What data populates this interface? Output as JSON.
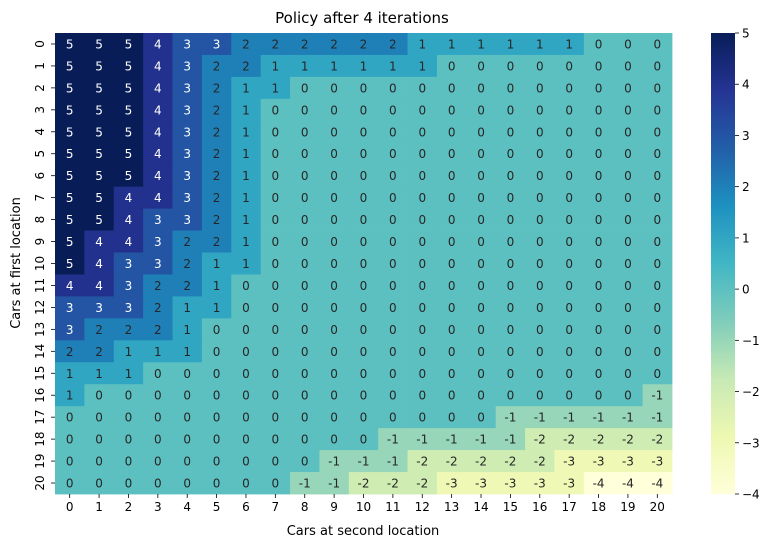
{
  "chart_data": {
    "type": "heatmap",
    "title": "Policy after 4 iterations",
    "xlabel": "Cars at second location",
    "ylabel": "Cars at first location",
    "x": [
      0,
      1,
      2,
      3,
      4,
      5,
      6,
      7,
      8,
      9,
      10,
      11,
      12,
      13,
      14,
      15,
      16,
      17,
      18,
      19,
      20
    ],
    "y": [
      0,
      1,
      2,
      3,
      4,
      5,
      6,
      7,
      8,
      9,
      10,
      11,
      12,
      13,
      14,
      15,
      16,
      17,
      18,
      19,
      20
    ],
    "colormap": "YlGnBu",
    "vmin": -4,
    "vmax": 5,
    "colorbar_ticks": [
      5,
      4,
      3,
      2,
      1,
      0,
      -1,
      -2,
      -3,
      -4
    ],
    "values": [
      [
        5,
        5,
        5,
        4,
        3,
        3,
        2,
        2,
        2,
        2,
        2,
        2,
        1,
        1,
        1,
        1,
        1,
        1,
        0,
        0,
        0
      ],
      [
        5,
        5,
        5,
        4,
        3,
        2,
        2,
        1,
        1,
        1,
        1,
        1,
        1,
        0,
        0,
        0,
        0,
        0,
        0,
        0,
        0
      ],
      [
        5,
        5,
        5,
        4,
        3,
        2,
        1,
        1,
        0,
        0,
        0,
        0,
        0,
        0,
        0,
        0,
        0,
        0,
        0,
        0,
        0
      ],
      [
        5,
        5,
        5,
        4,
        3,
        2,
        1,
        0,
        0,
        0,
        0,
        0,
        0,
        0,
        0,
        0,
        0,
        0,
        0,
        0,
        0
      ],
      [
        5,
        5,
        5,
        4,
        3,
        2,
        1,
        0,
        0,
        0,
        0,
        0,
        0,
        0,
        0,
        0,
        0,
        0,
        0,
        0,
        0
      ],
      [
        5,
        5,
        5,
        4,
        3,
        2,
        1,
        0,
        0,
        0,
        0,
        0,
        0,
        0,
        0,
        0,
        0,
        0,
        0,
        0,
        0
      ],
      [
        5,
        5,
        5,
        4,
        3,
        2,
        1,
        0,
        0,
        0,
        0,
        0,
        0,
        0,
        0,
        0,
        0,
        0,
        0,
        0,
        0
      ],
      [
        5,
        5,
        4,
        4,
        3,
        2,
        1,
        0,
        0,
        0,
        0,
        0,
        0,
        0,
        0,
        0,
        0,
        0,
        0,
        0,
        0
      ],
      [
        5,
        5,
        4,
        3,
        3,
        2,
        1,
        0,
        0,
        0,
        0,
        0,
        0,
        0,
        0,
        0,
        0,
        0,
        0,
        0,
        0
      ],
      [
        5,
        4,
        4,
        3,
        2,
        2,
        1,
        0,
        0,
        0,
        0,
        0,
        0,
        0,
        0,
        0,
        0,
        0,
        0,
        0,
        0
      ],
      [
        5,
        4,
        3,
        3,
        2,
        1,
        1,
        0,
        0,
        0,
        0,
        0,
        0,
        0,
        0,
        0,
        0,
        0,
        0,
        0,
        0
      ],
      [
        4,
        4,
        3,
        2,
        2,
        1,
        0,
        0,
        0,
        0,
        0,
        0,
        0,
        0,
        0,
        0,
        0,
        0,
        0,
        0,
        0
      ],
      [
        3,
        3,
        3,
        2,
        1,
        1,
        0,
        0,
        0,
        0,
        0,
        0,
        0,
        0,
        0,
        0,
        0,
        0,
        0,
        0,
        0
      ],
      [
        3,
        2,
        2,
        2,
        1,
        0,
        0,
        0,
        0,
        0,
        0,
        0,
        0,
        0,
        0,
        0,
        0,
        0,
        0,
        0,
        0
      ],
      [
        2,
        2,
        1,
        1,
        1,
        0,
        0,
        0,
        0,
        0,
        0,
        0,
        0,
        0,
        0,
        0,
        0,
        0,
        0,
        0,
        0
      ],
      [
        1,
        1,
        1,
        0,
        0,
        0,
        0,
        0,
        0,
        0,
        0,
        0,
        0,
        0,
        0,
        0,
        0,
        0,
        0,
        0,
        0
      ],
      [
        1,
        0,
        0,
        0,
        0,
        0,
        0,
        0,
        0,
        0,
        0,
        0,
        0,
        0,
        0,
        0,
        0,
        0,
        0,
        0,
        -1
      ],
      [
        0,
        0,
        0,
        0,
        0,
        0,
        0,
        0,
        0,
        0,
        0,
        0,
        0,
        0,
        0,
        -1,
        -1,
        -1,
        -1,
        -1,
        -1
      ],
      [
        0,
        0,
        0,
        0,
        0,
        0,
        0,
        0,
        0,
        0,
        0,
        -1,
        -1,
        -1,
        -1,
        -1,
        -2,
        -2,
        -2,
        -2,
        -2
      ],
      [
        0,
        0,
        0,
        0,
        0,
        0,
        0,
        0,
        0,
        -1,
        -1,
        -1,
        -2,
        -2,
        -2,
        -2,
        -2,
        -3,
        -3,
        -3,
        -3
      ],
      [
        0,
        0,
        0,
        0,
        0,
        0,
        0,
        0,
        -1,
        -1,
        -2,
        -2,
        -2,
        -3,
        -3,
        -3,
        -3,
        -3,
        -4,
        -4,
        -4
      ]
    ]
  }
}
